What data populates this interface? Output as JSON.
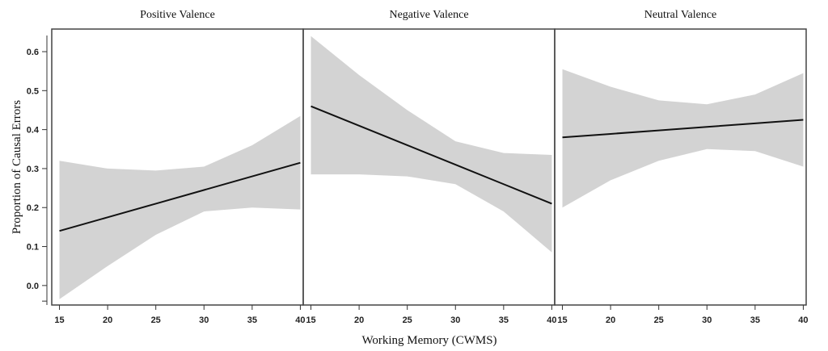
{
  "chart_data": {
    "type": "line",
    "ylabel": "Proportion of Causal Errors",
    "xlabel": "Working Memory (CWMS)",
    "ylim": [
      -0.05,
      0.658
    ],
    "xlim": [
      14.2,
      40.3
    ],
    "yticks": [
      "0.0",
      "0.1",
      "0.2",
      "0.3",
      "0.4",
      "0.5",
      "0.6"
    ],
    "ytick_values": [
      0,
      0.1,
      0.2,
      0.3,
      0.4,
      0.5,
      0.6
    ],
    "xticks": [
      "15",
      "20",
      "25",
      "30",
      "35",
      "40"
    ],
    "xtick_values": [
      15,
      20,
      25,
      30,
      35,
      40
    ],
    "colors": {
      "band": "#d3d3d3",
      "line": "#111111",
      "frame": "#444444"
    },
    "panels": [
      {
        "title": "Positive Valence",
        "x": [
          15,
          20,
          25,
          30,
          35,
          40
        ],
        "fit": [
          0.14,
          0.175,
          0.21,
          0.245,
          0.28,
          0.315
        ],
        "upper": [
          0.32,
          0.3,
          0.295,
          0.305,
          0.36,
          0.435
        ],
        "lower": [
          -0.035,
          0.05,
          0.13,
          0.19,
          0.2,
          0.195
        ]
      },
      {
        "title": "Negative Valence",
        "x": [
          15,
          20,
          25,
          30,
          35,
          40
        ],
        "fit": [
          0.46,
          0.41,
          0.36,
          0.31,
          0.26,
          0.21
        ],
        "upper": [
          0.64,
          0.54,
          0.45,
          0.37,
          0.34,
          0.335
        ],
        "lower": [
          0.285,
          0.285,
          0.28,
          0.26,
          0.19,
          0.085
        ]
      },
      {
        "title": "Neutral Valence",
        "x": [
          15,
          20,
          25,
          30,
          35,
          40
        ],
        "fit": [
          0.38,
          0.389,
          0.398,
          0.407,
          0.416,
          0.425
        ],
        "upper": [
          0.555,
          0.51,
          0.475,
          0.465,
          0.49,
          0.545
        ],
        "lower": [
          0.2,
          0.27,
          0.32,
          0.35,
          0.345,
          0.305
        ]
      }
    ]
  }
}
